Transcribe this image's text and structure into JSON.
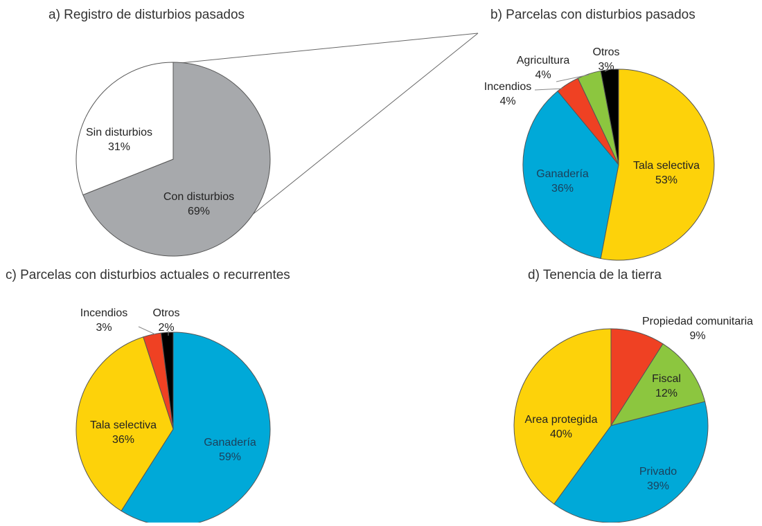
{
  "chart_data": [
    {
      "type": "pie",
      "title": "a) Registro de disturbios pasados",
      "categories": [
        "Con disturbios",
        "Sin disturbios"
      ],
      "values": [
        69,
        31
      ],
      "value_labels": [
        "69%",
        "31%"
      ],
      "colors": [
        "#a7a9ac",
        "#ffffff"
      ]
    },
    {
      "type": "pie",
      "title": "b) Parcelas con disturbios pasados",
      "categories": [
        "Tala selectiva",
        "Ganadería",
        "Incendios",
        "Agricultura",
        "Otros"
      ],
      "values": [
        53,
        36,
        4,
        4,
        3
      ],
      "value_labels": [
        "53%",
        "36%",
        "4%",
        "4%",
        "3%"
      ],
      "colors": [
        "#fdd20a",
        "#00a9d8",
        "#ef4123",
        "#8cc63f",
        "#000000"
      ]
    },
    {
      "type": "pie",
      "title": "c) Parcelas con disturbios actuales o recurrentes",
      "categories": [
        "Ganadería",
        "Tala selectiva",
        "Incendios",
        "Otros"
      ],
      "values": [
        59,
        36,
        3,
        2
      ],
      "value_labels": [
        "59%",
        "36%",
        "3%",
        "2%"
      ],
      "colors": [
        "#00a9d8",
        "#fdd20a",
        "#ef4123",
        "#000000"
      ]
    },
    {
      "type": "pie",
      "title": "d) Tenencia de la tierra",
      "categories": [
        "Propiedad comunitaria",
        "Fiscal",
        "Privado",
        "Area protegida"
      ],
      "values": [
        9,
        12,
        39,
        40
      ],
      "value_labels": [
        "9%",
        "12%",
        "39%",
        "40%"
      ],
      "colors": [
        "#ef4123",
        "#8cc63f",
        "#00a9d8",
        "#fdd20a"
      ]
    }
  ]
}
